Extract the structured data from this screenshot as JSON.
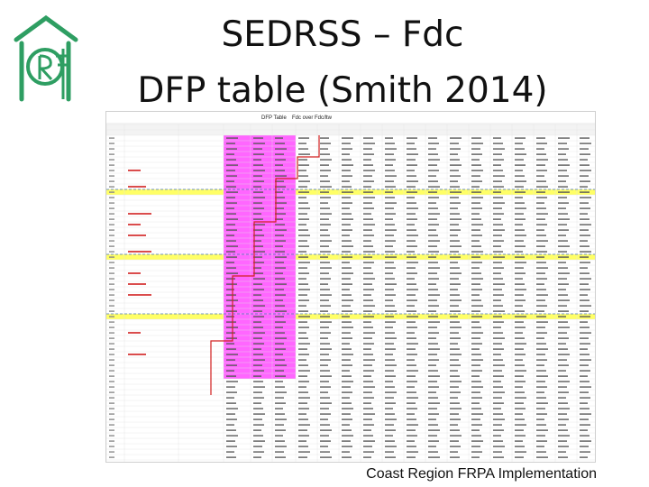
{
  "slide": {
    "title_line1": "SEDRSS – Fdc",
    "title_line2": "DFP table (Smith 2014)",
    "footer": "Coast Region FRPA Implementation"
  },
  "colors": {
    "logo_green": "#2e9e62",
    "pink_block": "#ff66ff",
    "yellow_row": "#ffff66",
    "red_line": "#d12020",
    "divider": "#4a78b8"
  },
  "spreadsheet": {
    "heading_left": "DFP Table",
    "heading_right": "Fdc over Fdc/ltw",
    "row_count": 63,
    "col_count": 20,
    "yellow_rows": [
      10,
      22,
      33
    ],
    "divider_rows": [
      10,
      22,
      33
    ],
    "pink_rows_end": 45
  }
}
